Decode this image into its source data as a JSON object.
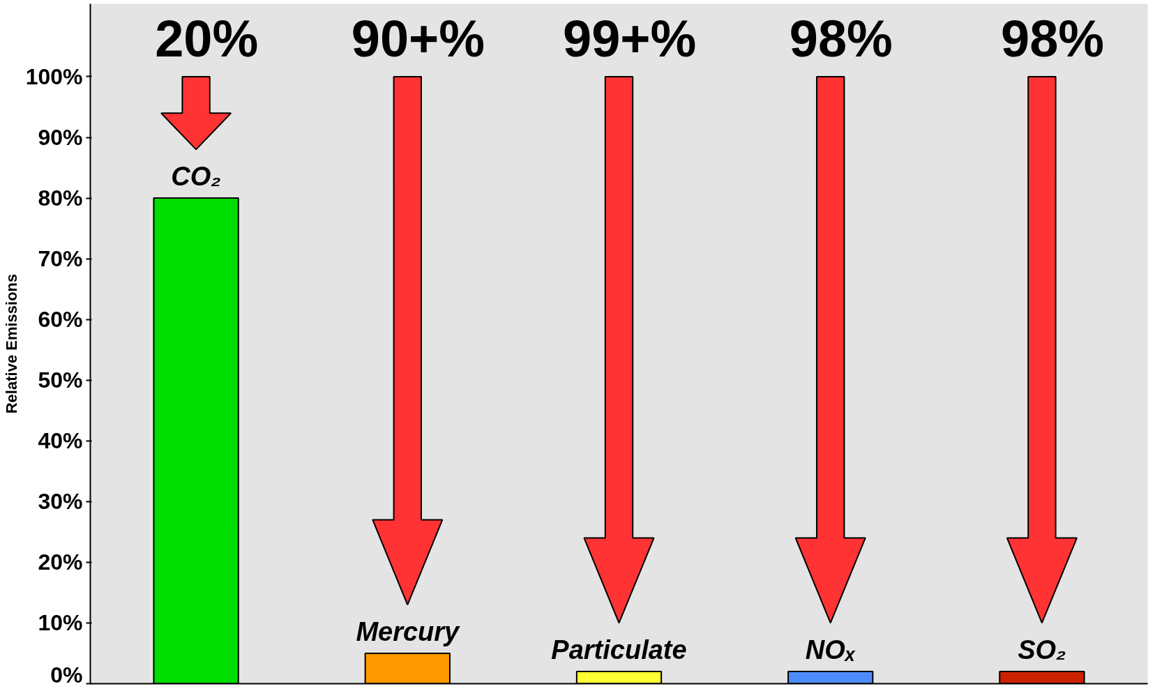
{
  "chart_data": {
    "type": "bar",
    "ylabel": "Relative Emissions",
    "categories": [
      "CO₂",
      "Mercury",
      "Particulate",
      "NOₓ",
      "SO₂"
    ],
    "values": [
      80,
      5,
      2,
      2,
      2
    ],
    "colors": [
      "#00dd00",
      "#ff9900",
      "#ffff33",
      "#4d8cff",
      "#cc2200"
    ],
    "ylim": [
      0,
      112
    ],
    "yticks": [
      {
        "value": 0,
        "label": "0%"
      },
      {
        "value": 10,
        "label": "10%"
      },
      {
        "value": 20,
        "label": "20%"
      },
      {
        "value": 30,
        "label": "30%"
      },
      {
        "value": 40,
        "label": "40%"
      },
      {
        "value": 50,
        "label": "50%"
      },
      {
        "value": 60,
        "label": "60%"
      },
      {
        "value": 70,
        "label": "70%"
      },
      {
        "value": 80,
        "label": "80%"
      },
      {
        "value": 90,
        "label": "90%"
      },
      {
        "value": 100,
        "label": "100%"
      }
    ],
    "annotations": [
      "20%",
      "90+%",
      "99+%",
      "98%",
      "98%"
    ],
    "tick_labels": "y"
  }
}
